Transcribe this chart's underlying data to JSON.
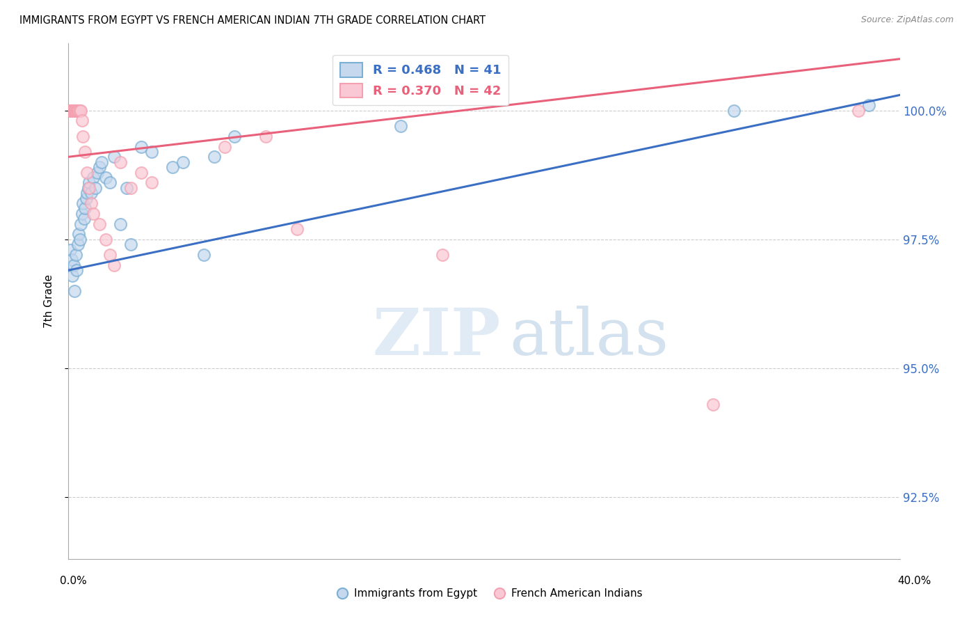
{
  "title": "IMMIGRANTS FROM EGYPT VS FRENCH AMERICAN INDIAN 7TH GRADE CORRELATION CHART",
  "source": "Source: ZipAtlas.com",
  "ylabel": "7th Grade",
  "ytick_values": [
    92.5,
    95.0,
    97.5,
    100.0
  ],
  "xlim": [
    0.0,
    40.0
  ],
  "ylim": [
    91.3,
    101.3
  ],
  "legend_blue_r": "R = 0.468",
  "legend_blue_n": "N = 41",
  "legend_pink_r": "R = 0.370",
  "legend_pink_n": "N = 42",
  "blue_color": "#7BAFD4",
  "pink_color": "#F4A0B0",
  "blue_line_color": "#3B6FC4",
  "pink_line_color": "#E8607A",
  "watermark_zip": "ZIP",
  "watermark_atlas": "atlas",
  "blue_scatter_x": [
    0.1,
    0.15,
    0.2,
    0.25,
    0.3,
    0.35,
    0.4,
    0.45,
    0.5,
    0.55,
    0.6,
    0.65,
    0.7,
    0.75,
    0.8,
    0.85,
    0.9,
    0.95,
    1.0,
    1.1,
    1.2,
    1.3,
    1.4,
    1.5,
    1.6,
    1.8,
    2.0,
    2.2,
    2.5,
    2.8,
    3.0,
    3.5,
    4.0,
    5.0,
    5.5,
    6.5,
    7.0,
    8.0,
    16.0,
    32.0,
    38.5
  ],
  "blue_scatter_y": [
    97.3,
    97.1,
    96.8,
    97.0,
    96.5,
    97.2,
    96.9,
    97.4,
    97.6,
    97.5,
    97.8,
    98.0,
    98.2,
    97.9,
    98.1,
    98.3,
    98.4,
    98.5,
    98.6,
    98.4,
    98.7,
    98.5,
    98.8,
    98.9,
    99.0,
    98.7,
    98.6,
    99.1,
    97.8,
    98.5,
    97.4,
    99.3,
    99.2,
    98.9,
    99.0,
    97.2,
    99.1,
    99.5,
    99.7,
    100.0,
    100.1
  ],
  "pink_scatter_x": [
    0.05,
    0.08,
    0.1,
    0.12,
    0.15,
    0.18,
    0.2,
    0.22,
    0.25,
    0.28,
    0.3,
    0.33,
    0.35,
    0.38,
    0.4,
    0.43,
    0.45,
    0.48,
    0.5,
    0.55,
    0.6,
    0.65,
    0.7,
    0.8,
    0.9,
    1.0,
    1.1,
    1.2,
    1.5,
    1.8,
    2.0,
    2.2,
    2.5,
    3.0,
    3.5,
    4.0,
    7.5,
    9.5,
    11.0,
    18.0,
    31.0,
    38.0
  ],
  "pink_scatter_y": [
    100.0,
    100.0,
    100.0,
    100.0,
    100.0,
    100.0,
    100.0,
    100.0,
    100.0,
    100.0,
    100.0,
    100.0,
    100.0,
    100.0,
    100.0,
    100.0,
    100.0,
    100.0,
    100.0,
    100.0,
    100.0,
    99.8,
    99.5,
    99.2,
    98.8,
    98.5,
    98.2,
    98.0,
    97.8,
    97.5,
    97.2,
    97.0,
    99.0,
    98.5,
    98.8,
    98.6,
    99.3,
    99.5,
    97.7,
    97.2,
    94.3,
    100.0
  ],
  "blue_trendline_x": [
    0.0,
    40.0
  ],
  "blue_trendline_y": [
    96.9,
    100.3
  ],
  "pink_trendline_x": [
    0.0,
    40.0
  ],
  "pink_trendline_y": [
    99.1,
    101.0
  ]
}
